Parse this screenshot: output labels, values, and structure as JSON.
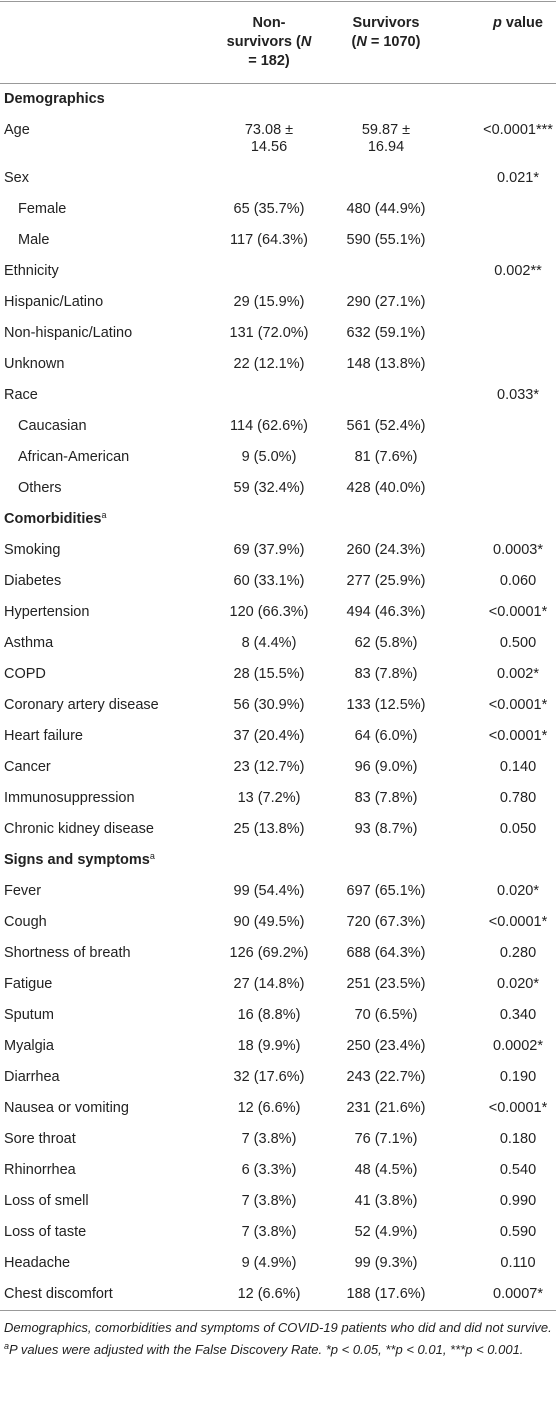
{
  "table": {
    "header": {
      "col1": {
        "name": "Non-survivors",
        "open": "(",
        "var": "N",
        "rest": " = 182)"
      },
      "col2": {
        "name": "Survivors",
        "open": "(",
        "var": "N",
        "rest": " = 1070)"
      },
      "col3": {
        "var": "p",
        "rest": " value"
      }
    },
    "rows": [
      {
        "label": "Demographics",
        "section": true
      },
      {
        "label": "Age",
        "cells": [
          "73.08 ± 14.56",
          "59.87 ± 16.94",
          "<0.0001***"
        ]
      },
      {
        "label": "Sex",
        "cells": [
          null,
          null,
          "0.021*"
        ]
      },
      {
        "label": "Female",
        "indent": true,
        "cells": [
          "65 (35.7%)",
          "480 (44.9%)",
          null
        ]
      },
      {
        "label": "Male",
        "indent": true,
        "cells": [
          "117 (64.3%)",
          "590 (55.1%)",
          null
        ]
      },
      {
        "label": "Ethnicity",
        "cells": [
          null,
          null,
          "0.002**"
        ]
      },
      {
        "label": "Hispanic/Latino",
        "cells": [
          "29 (15.9%)",
          "290 (27.1%)",
          null
        ]
      },
      {
        "label": "Non-hispanic/Latino",
        "cells": [
          "131 (72.0%)",
          "632 (59.1%)",
          null
        ]
      },
      {
        "label": "Unknown",
        "cells": [
          "22 (12.1%)",
          "148 (13.8%)",
          null
        ]
      },
      {
        "label": "Race",
        "cells": [
          null,
          null,
          "0.033*"
        ]
      },
      {
        "label": "Caucasian",
        "indent": true,
        "cells": [
          "114 (62.6%)",
          "561 (52.4%)",
          null
        ]
      },
      {
        "label": "African-American",
        "indent": true,
        "cells": [
          "9 (5.0%)",
          "81 (7.6%)",
          null
        ]
      },
      {
        "label": "Others",
        "indent": true,
        "cells": [
          "59 (32.4%)",
          "428 (40.0%)",
          null
        ]
      },
      {
        "label": "Comorbidities",
        "sup": "a",
        "section": true
      },
      {
        "label": "Smoking",
        "cells": [
          "69 (37.9%)",
          "260 (24.3%)",
          "0.0003*"
        ]
      },
      {
        "label": "Diabetes",
        "cells": [
          "60 (33.1%)",
          "277 (25.9%)",
          "0.060"
        ]
      },
      {
        "label": "Hypertension",
        "cells": [
          "120 (66.3%)",
          "494 (46.3%)",
          "<0.0001*"
        ]
      },
      {
        "label": "Asthma",
        "cells": [
          "8 (4.4%)",
          "62 (5.8%)",
          "0.500"
        ]
      },
      {
        "label": "COPD",
        "cells": [
          "28 (15.5%)",
          "83 (7.8%)",
          "0.002*"
        ]
      },
      {
        "label": "Coronary artery disease",
        "cells": [
          "56 (30.9%)",
          "133 (12.5%)",
          "<0.0001*"
        ]
      },
      {
        "label": "Heart failure",
        "cells": [
          "37 (20.4%)",
          "64 (6.0%)",
          "<0.0001*"
        ]
      },
      {
        "label": "Cancer",
        "cells": [
          "23 (12.7%)",
          "96 (9.0%)",
          "0.140"
        ]
      },
      {
        "label": "Immunosuppression",
        "cells": [
          "13 (7.2%)",
          "83 (7.8%)",
          "0.780"
        ]
      },
      {
        "label": "Chronic kidney disease",
        "cells": [
          "25 (13.8%)",
          "93 (8.7%)",
          "0.050"
        ]
      },
      {
        "label": "Signs and symptoms",
        "sup": "a",
        "section": true
      },
      {
        "label": "Fever",
        "cells": [
          "99 (54.4%)",
          "697 (65.1%)",
          "0.020*"
        ]
      },
      {
        "label": "Cough",
        "cells": [
          "90 (49.5%)",
          "720 (67.3%)",
          "<0.0001*"
        ]
      },
      {
        "label": "Shortness of breath",
        "cells": [
          "126 (69.2%)",
          "688 (64.3%)",
          "0.280"
        ]
      },
      {
        "label": "Fatigue",
        "cells": [
          "27 (14.8%)",
          "251 (23.5%)",
          "0.020*"
        ]
      },
      {
        "label": "Sputum",
        "cells": [
          "16 (8.8%)",
          "70 (6.5%)",
          "0.340"
        ]
      },
      {
        "label": "Myalgia",
        "cells": [
          "18 (9.9%)",
          "250 (23.4%)",
          "0.0002*"
        ]
      },
      {
        "label": "Diarrhea",
        "cells": [
          "32 (17.6%)",
          "243 (22.7%)",
          "0.190"
        ]
      },
      {
        "label": "Nausea or vomiting",
        "cells": [
          "12 (6.6%)",
          "231 (21.6%)",
          "<0.0001*"
        ]
      },
      {
        "label": "Sore throat",
        "cells": [
          "7 (3.8%)",
          "76 (7.1%)",
          "0.180"
        ]
      },
      {
        "label": "Rhinorrhea",
        "cells": [
          "6 (3.3%)",
          "48 (4.5%)",
          "0.540"
        ]
      },
      {
        "label": "Loss of smell",
        "cells": [
          "7 (3.8%)",
          "41 (3.8%)",
          "0.990"
        ]
      },
      {
        "label": "Loss of taste",
        "cells": [
          "7 (3.8%)",
          "52 (4.9%)",
          "0.590"
        ]
      },
      {
        "label": "Headache",
        "cells": [
          "9 (4.9%)",
          "99 (9.3%)",
          "0.110"
        ]
      },
      {
        "label": "Chest discomfort",
        "cells": [
          "12 (6.6%)",
          "188 (17.6%)",
          "0.0007*"
        ]
      }
    ]
  },
  "footnotes": {
    "caption": "Demographics, comorbidities and symptoms of COVID-19 patients who did and did not survive.",
    "note_sup": "a",
    "note": "P values were adjusted with the False Discovery Rate. *p < 0.05, **p < 0.01, ***p < 0.001."
  }
}
